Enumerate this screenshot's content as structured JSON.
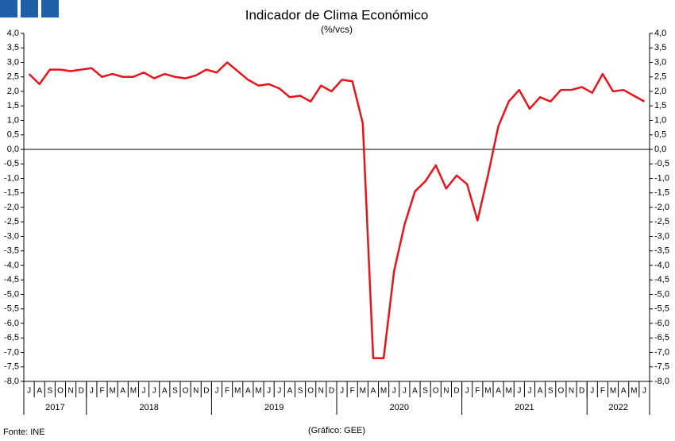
{
  "chart_data": {
    "type": "line",
    "title": "Indicador de Clima Económico",
    "subtitle": "(%/vcs)",
    "source": "Fonte: INE",
    "credit": "(Gráfico: GEE)",
    "categories": [
      "J",
      "A",
      "S",
      "O",
      "N",
      "D",
      "J",
      "F",
      "M",
      "A",
      "M",
      "J",
      "J",
      "A",
      "S",
      "O",
      "N",
      "D",
      "J",
      "F",
      "M",
      "A",
      "M",
      "J",
      "J",
      "A",
      "S",
      "O",
      "N",
      "D",
      "J",
      "F",
      "M",
      "A",
      "M",
      "J",
      "J",
      "A",
      "S",
      "O",
      "N",
      "D",
      "J",
      "F",
      "M",
      "A",
      "M",
      "J",
      "J",
      "A",
      "S",
      "O",
      "N",
      "D",
      "J",
      "F",
      "M",
      "A",
      "M",
      "J"
    ],
    "years": [
      "2017",
      "2018",
      "2019",
      "2020",
      "2021",
      "2022"
    ],
    "series": [
      {
        "name": "Indicador de Clima Económico",
        "color": "#e8141c",
        "values": [
          2.6,
          2.25,
          2.75,
          2.75,
          2.7,
          2.75,
          2.8,
          2.5,
          2.6,
          2.5,
          2.5,
          2.65,
          2.45,
          2.6,
          2.5,
          2.45,
          2.55,
          2.75,
          2.65,
          3.0,
          2.7,
          2.4,
          2.2,
          2.25,
          2.1,
          1.8,
          1.85,
          1.65,
          2.2,
          2.0,
          2.4,
          2.35,
          0.9,
          -7.2,
          -7.2,
          -4.2,
          -2.6,
          -1.45,
          -1.1,
          -0.55,
          -1.35,
          -0.9,
          -1.2,
          -2.45,
          -0.9,
          0.8,
          1.65,
          2.05,
          1.4,
          1.8,
          1.65,
          2.05,
          2.05,
          2.15,
          1.95,
          2.6,
          2.0,
          2.05,
          1.85,
          1.65
        ]
      }
    ],
    "ylim": [
      -8,
      4
    ],
    "yticks": [
      {
        "value": -8,
        "label": "-8,0"
      },
      {
        "value": -7.5,
        "label": "-7,5"
      },
      {
        "value": -7,
        "label": "-7,0"
      },
      {
        "value": -6.5,
        "label": "-6,5"
      },
      {
        "value": -6,
        "label": "-6,0"
      },
      {
        "value": -5.5,
        "label": "-5,5"
      },
      {
        "value": -5,
        "label": "-5,0"
      },
      {
        "value": -4.5,
        "label": "-4,5"
      },
      {
        "value": -4,
        "label": "-4,0"
      },
      {
        "value": -3.5,
        "label": "-3,5"
      },
      {
        "value": -3,
        "label": "-3,0"
      },
      {
        "value": -2.5,
        "label": "-2,5"
      },
      {
        "value": -2,
        "label": "-2,0"
      },
      {
        "value": -1.5,
        "label": "-1,5"
      },
      {
        "value": -1,
        "label": "-1,0"
      },
      {
        "value": -0.5,
        "label": "-0,5"
      },
      {
        "value": 0,
        "label": "0,0"
      },
      {
        "value": 0.5,
        "label": "0,5"
      },
      {
        "value": 1,
        "label": "1,0"
      },
      {
        "value": 1.5,
        "label": "1,5"
      },
      {
        "value": 2,
        "label": "2,0"
      },
      {
        "value": 2.5,
        "label": "2,5"
      },
      {
        "value": 3,
        "label": "3,0"
      },
      {
        "value": 3.5,
        "label": "3,5"
      },
      {
        "value": 4,
        "label": "4,0"
      }
    ]
  }
}
